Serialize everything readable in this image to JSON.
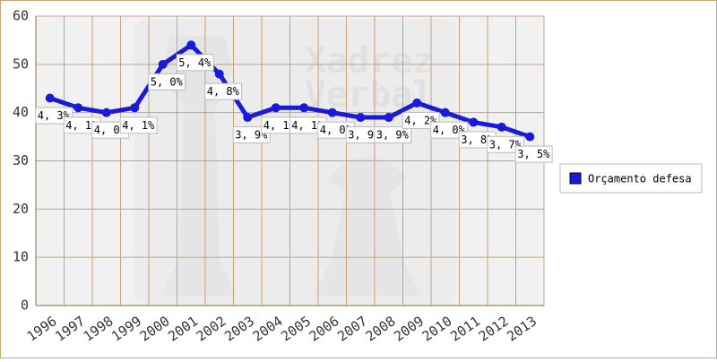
{
  "chart_data": {
    "type": "line",
    "categories": [
      "1996",
      "1997",
      "1998",
      "1999",
      "2000",
      "2001",
      "2002",
      "2003",
      "2004",
      "2005",
      "2006",
      "2007",
      "2008",
      "2009",
      "2010",
      "2011",
      "2012",
      "2013"
    ],
    "series": [
      {
        "name": "Orçamento defesa",
        "color": "#1a1adb",
        "values": [
          43,
          41,
          40,
          41,
          50,
          54,
          48,
          39,
          41,
          41,
          40,
          39,
          39,
          42,
          40,
          38,
          37,
          35
        ],
        "value_labels": [
          "4, 3%",
          "4, 1%",
          "4, 0%",
          "4, 1%",
          "5, 0%",
          "5, 4%",
          "4, 8%",
          "3, 9%",
          "4, 1%",
          "4, 1%",
          "4, 0%",
          "3, 9%",
          "3, 9%",
          "4, 2%",
          "4, 0%",
          "3, 8%",
          "3, 7%",
          "3, 5%"
        ]
      }
    ],
    "ylim": [
      0,
      60
    ],
    "yticks": [
      0,
      10,
      20,
      30,
      40,
      50,
      60
    ],
    "grid": true,
    "legend": "right",
    "watermark": [
      "Xadrez",
      "Verbal"
    ]
  }
}
